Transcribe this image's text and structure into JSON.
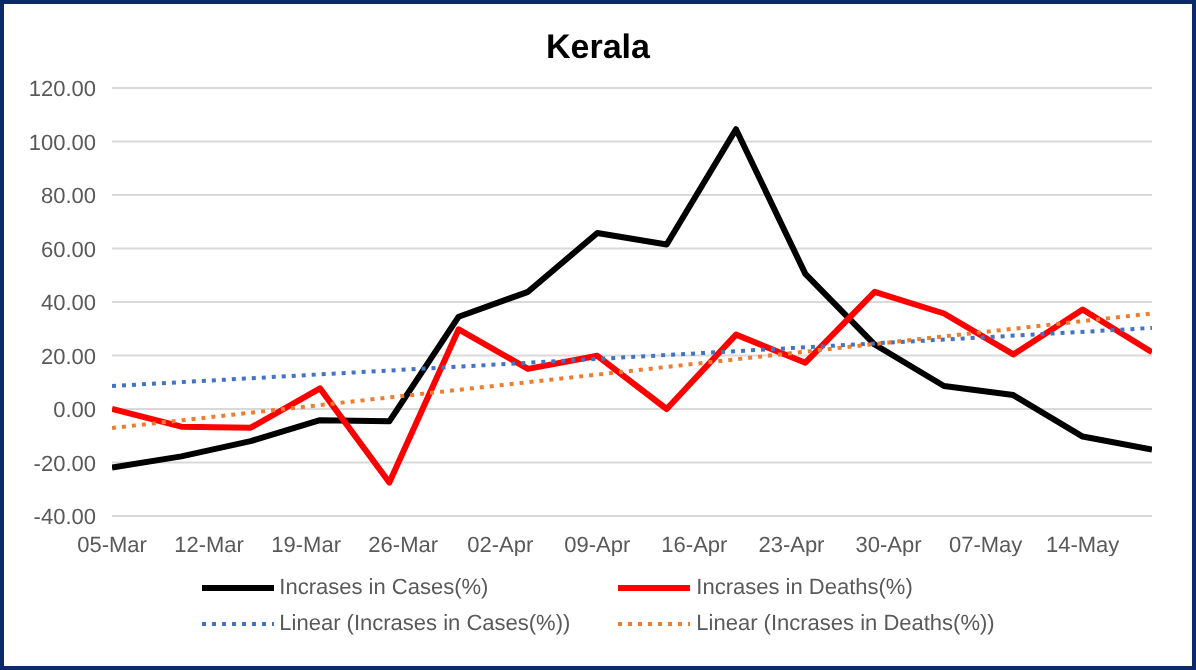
{
  "chart_data": {
    "type": "line",
    "title": "Kerala",
    "x": [
      "--03-05",
      "--03-10",
      "--03-15",
      "--03-20",
      "--03-25",
      "--03-30",
      "--04-04",
      "--04-09",
      "--04-14",
      "--04-19",
      "--04-24",
      "--04-29",
      "--05-04",
      "--05-09",
      "--05-14",
      "--05-19"
    ],
    "series": [
      {
        "name": "Incrases in Cases(%)",
        "color": "#000000",
        "values": [
          -21.9,
          -17.7,
          -12,
          -4.2,
          -4.6,
          34.5,
          43.8,
          65.8,
          61.5,
          104.6,
          50.5,
          24.1,
          8.6,
          5.2,
          -10.3,
          -15.2
        ]
      },
      {
        "name": "Incrases in Deaths(%)",
        "color": "#ff0000",
        "values": [
          0,
          -6.6,
          -7,
          7.7,
          -27.5,
          29.8,
          15,
          19.9,
          0,
          27.8,
          17.3,
          43.8,
          35.7,
          20.4,
          37.2,
          21.2
        ]
      },
      {
        "name": "Linear (Incrases in Cases(%))",
        "color": "#4472c4",
        "line_style": "dotted",
        "x": [
          "--03-05",
          "--05-19"
        ],
        "values": [
          8.6,
          30.3
        ]
      },
      {
        "name": "Linear (Incrases in Deaths(%))",
        "color": "#ed7d31",
        "line_style": "dotted",
        "x": [
          "--03-05",
          "--05-19"
        ],
        "values": [
          -7.1,
          35.7
        ]
      }
    ],
    "xlim": [
      "--03-05",
      "--05-19"
    ],
    "xticks": [
      {
        "value": "--03-05",
        "label": "05-Mar"
      },
      {
        "value": "--03-12",
        "label": "12-Mar"
      },
      {
        "value": "--03-19",
        "label": "19-Mar"
      },
      {
        "value": "--03-26",
        "label": "26-Mar"
      },
      {
        "value": "--04-02",
        "label": "02-Apr"
      },
      {
        "value": "--04-09",
        "label": "09-Apr"
      },
      {
        "value": "--04-16",
        "label": "16-Apr"
      },
      {
        "value": "--04-23",
        "label": "23-Apr"
      },
      {
        "value": "--04-30",
        "label": "30-Apr"
      },
      {
        "value": "--05-07",
        "label": "07-May"
      },
      {
        "value": "--05-14",
        "label": "14-May"
      }
    ],
    "ylim": [
      -40,
      120
    ],
    "yticks": [
      {
        "value": -40,
        "label": "-40.00"
      },
      {
        "value": -20,
        "label": "-20.00"
      },
      {
        "value": 0,
        "label": "0.00"
      },
      {
        "value": 20,
        "label": "20.00"
      },
      {
        "value": 40,
        "label": "40.00"
      },
      {
        "value": 60,
        "label": "60.00"
      },
      {
        "value": 80,
        "label": "80.00"
      },
      {
        "value": 100,
        "label": "100.00"
      },
      {
        "value": 120,
        "label": "120.00"
      }
    ],
    "grid": "y",
    "legend": "bottom",
    "marker": "none",
    "line_style": "solid"
  }
}
